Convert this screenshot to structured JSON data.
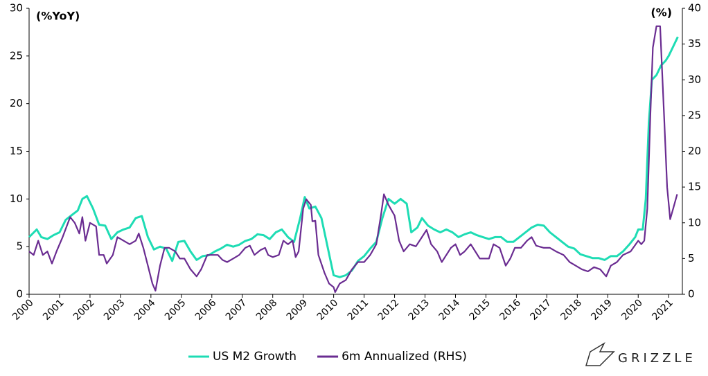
{
  "chart_data": {
    "type": "line",
    "ylabel": "(%YoY)",
    "y2label": "(%)",
    "xlim": [
      2000,
      2021.45
    ],
    "xticks": [
      2000,
      2001,
      2002,
      2003,
      2004,
      2005,
      2006,
      2007,
      2008,
      2009,
      2010,
      2011,
      2012,
      2013,
      2014,
      2015,
      2016,
      2017,
      2018,
      2019,
      2020,
      2021
    ],
    "ylim": [
      0,
      30
    ],
    "yticks": [
      0,
      5,
      10,
      15,
      20,
      25,
      30
    ],
    "y2lim": [
      0,
      40
    ],
    "y2ticks": [
      0,
      5,
      10,
      15,
      20,
      25,
      30,
      35,
      40
    ],
    "grid": false,
    "legend": "bottom",
    "series": [
      {
        "name": "US M2 Growth",
        "color": "#1edcb4",
        "axis": "y",
        "x": [
          2000.0,
          2000.25,
          2000.4,
          2000.6,
          2000.8,
          2001.0,
          2001.2,
          2001.4,
          2001.6,
          2001.75,
          2001.9,
          2002.1,
          2002.3,
          2002.5,
          2002.7,
          2002.9,
          2003.1,
          2003.3,
          2003.5,
          2003.7,
          2003.9,
          2004.1,
          2004.3,
          2004.5,
          2004.7,
          2004.9,
          2005.1,
          2005.3,
          2005.5,
          2005.7,
          2005.9,
          2006.1,
          2006.3,
          2006.5,
          2006.7,
          2006.9,
          2007.1,
          2007.3,
          2007.5,
          2007.7,
          2007.9,
          2008.1,
          2008.3,
          2008.5,
          2008.7,
          2008.9,
          2009.05,
          2009.2,
          2009.4,
          2009.6,
          2009.8,
          2010.0,
          2010.2,
          2010.4,
          2010.6,
          2010.8,
          2011.0,
          2011.2,
          2011.4,
          2011.6,
          2011.8,
          2012.0,
          2012.2,
          2012.4,
          2012.55,
          2012.75,
          2012.9,
          2013.1,
          2013.3,
          2013.5,
          2013.7,
          2013.9,
          2014.1,
          2014.3,
          2014.5,
          2014.7,
          2014.9,
          2015.1,
          2015.3,
          2015.5,
          2015.7,
          2015.9,
          2016.1,
          2016.3,
          2016.5,
          2016.7,
          2016.9,
          2017.1,
          2017.3,
          2017.5,
          2017.7,
          2017.9,
          2018.1,
          2018.3,
          2018.5,
          2018.7,
          2018.9,
          2019.1,
          2019.3,
          2019.5,
          2019.7,
          2019.9,
          2020.0,
          2020.15,
          2020.25,
          2020.35,
          2020.45,
          2020.6,
          2020.75,
          2020.9,
          2021.0,
          2021.15,
          2021.3
        ],
        "values": [
          6.0,
          6.8,
          6.0,
          5.8,
          6.2,
          6.5,
          7.8,
          8.3,
          8.8,
          10.0,
          10.3,
          9.0,
          7.3,
          7.2,
          5.8,
          6.5,
          6.8,
          7.0,
          8.0,
          8.2,
          6.0,
          4.7,
          5.0,
          4.8,
          3.5,
          5.5,
          5.6,
          4.5,
          3.6,
          4.0,
          4.1,
          4.5,
          4.8,
          5.2,
          5.0,
          5.2,
          5.6,
          5.8,
          6.3,
          6.2,
          5.8,
          6.5,
          6.8,
          6.0,
          5.5,
          8.0,
          10.2,
          9.0,
          9.2,
          8.0,
          5.0,
          2.0,
          1.8,
          2.0,
          2.5,
          3.5,
          4.0,
          4.8,
          5.5,
          8.0,
          10.0,
          9.5,
          10.0,
          9.5,
          6.5,
          7.0,
          8.0,
          7.2,
          6.8,
          6.5,
          6.8,
          6.5,
          6.0,
          6.3,
          6.5,
          6.2,
          6.0,
          5.8,
          6.0,
          6.0,
          5.5,
          5.5,
          6.0,
          6.5,
          7.0,
          7.3,
          7.2,
          6.5,
          6.0,
          5.5,
          5.0,
          4.8,
          4.2,
          4.0,
          3.8,
          3.8,
          3.6,
          4.0,
          4.0,
          4.5,
          5.2,
          6.0,
          6.8,
          6.8,
          10.0,
          18.0,
          22.5,
          23.0,
          24.0,
          24.5,
          25.0,
          26.0,
          27.0
        ]
      },
      {
        "name": "6m Annualized (RHS)",
        "color": "#6a2c91",
        "axis": "y2",
        "x": [
          2000.0,
          2000.15,
          2000.3,
          2000.45,
          2000.6,
          2000.75,
          2000.9,
          2001.1,
          2001.35,
          2001.5,
          2001.65,
          2001.75,
          2001.85,
          2002.0,
          2002.2,
          2002.3,
          2002.45,
          2002.55,
          2002.75,
          2002.9,
          2003.1,
          2003.3,
          2003.5,
          2003.6,
          2003.75,
          2003.9,
          2004.05,
          2004.15,
          2004.3,
          2004.45,
          2004.6,
          2004.8,
          2004.95,
          2005.1,
          2005.3,
          2005.5,
          2005.65,
          2005.85,
          2006.0,
          2006.2,
          2006.35,
          2006.5,
          2006.7,
          2006.9,
          2007.1,
          2007.25,
          2007.4,
          2007.6,
          2007.75,
          2007.85,
          2008.0,
          2008.2,
          2008.35,
          2008.5,
          2008.65,
          2008.75,
          2008.85,
          2009.0,
          2009.1,
          2009.25,
          2009.3,
          2009.4,
          2009.5,
          2009.7,
          2009.85,
          2010.0,
          2010.05,
          2010.2,
          2010.4,
          2010.6,
          2010.8,
          2011.0,
          2011.2,
          2011.4,
          2011.55,
          2011.65,
          2011.8,
          2012.0,
          2012.15,
          2012.3,
          2012.5,
          2012.7,
          2012.9,
          2013.05,
          2013.2,
          2013.4,
          2013.55,
          2013.7,
          2013.85,
          2014.0,
          2014.15,
          2014.3,
          2014.5,
          2014.65,
          2014.8,
          2014.95,
          2015.1,
          2015.25,
          2015.45,
          2015.65,
          2015.8,
          2015.95,
          2016.15,
          2016.35,
          2016.5,
          2016.65,
          2016.9,
          2017.1,
          2017.3,
          2017.55,
          2017.75,
          2017.95,
          2018.15,
          2018.35,
          2018.55,
          2018.75,
          2018.95,
          2019.1,
          2019.3,
          2019.5,
          2019.75,
          2020.0,
          2020.1,
          2020.2,
          2020.3,
          2020.4,
          2020.48,
          2020.6,
          2020.72,
          2020.85,
          2020.95,
          2021.05,
          2021.15,
          2021.28
        ],
        "values": [
          6,
          5.5,
          7.5,
          5.5,
          6,
          4.3,
          6,
          8,
          10.8,
          10,
          8.5,
          10.8,
          7.5,
          10,
          9.5,
          5.5,
          5.5,
          4.3,
          5.5,
          8,
          7.5,
          7,
          7.5,
          8.5,
          6.5,
          4,
          1.5,
          0.5,
          4,
          6.5,
          6.5,
          6,
          5,
          5,
          3.5,
          2.5,
          3.5,
          5.5,
          5.5,
          5.5,
          4.8,
          4.5,
          5,
          5.5,
          6.5,
          6.8,
          5.5,
          6.2,
          6.5,
          5.5,
          5.2,
          5.5,
          7.5,
          7,
          7.5,
          5.2,
          6,
          12,
          13.3,
          12.5,
          10.2,
          10.3,
          5.5,
          3,
          1.5,
          1,
          0.3,
          1.5,
          2,
          3.5,
          4.5,
          4.5,
          5.5,
          7,
          11,
          14,
          12.5,
          11,
          7.5,
          6,
          7,
          6.7,
          8,
          9,
          7,
          6,
          4.5,
          5.5,
          6.5,
          7,
          5.5,
          6,
          7,
          6,
          5,
          5,
          5,
          7,
          6.5,
          4,
          5,
          6.5,
          6.5,
          7.5,
          8,
          6.8,
          6.5,
          6.5,
          6,
          5.5,
          4.5,
          4,
          3.5,
          3.2,
          3.8,
          3.5,
          2.5,
          4,
          4.5,
          5.5,
          6,
          7.5,
          7,
          7.5,
          12,
          25,
          34.5,
          37.5,
          37.5,
          25,
          15,
          10.5,
          12,
          14
        ]
      }
    ]
  },
  "logo": "GRIZZLE"
}
